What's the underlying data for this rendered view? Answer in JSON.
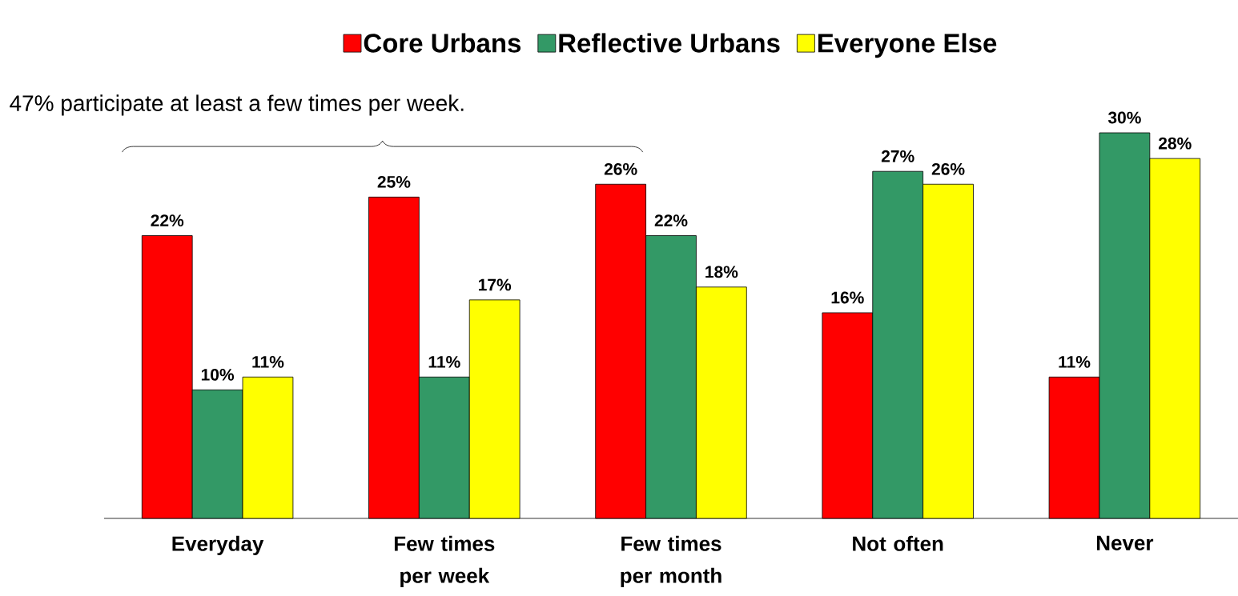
{
  "chart_data": {
    "type": "bar",
    "categories": [
      "Everyday",
      "Few times per week",
      "Few times per month",
      "Not often",
      "Never"
    ],
    "series": [
      {
        "name": "Core Urbans",
        "color": "#ff0000",
        "values": [
          22,
          25,
          26,
          16,
          11
        ],
        "value_labels": [
          "22%",
          "25%",
          "26%",
          "16%",
          "11%"
        ]
      },
      {
        "name": "Reflective Urbans",
        "color": "#339966",
        "values": [
          10,
          11,
          22,
          27,
          30
        ],
        "value_labels": [
          "10%",
          "11%",
          "22%",
          "27%",
          "30%"
        ]
      },
      {
        "name": "Everyone Else",
        "color": "#ffff00",
        "values": [
          11,
          17,
          18,
          26,
          28
        ],
        "value_labels": [
          "11%",
          "17%",
          "18%",
          "26%",
          "28%"
        ]
      }
    ],
    "ylim": [
      0,
      30
    ],
    "legend": "top",
    "annotations": [
      "47% participate at least a few times per week."
    ]
  }
}
